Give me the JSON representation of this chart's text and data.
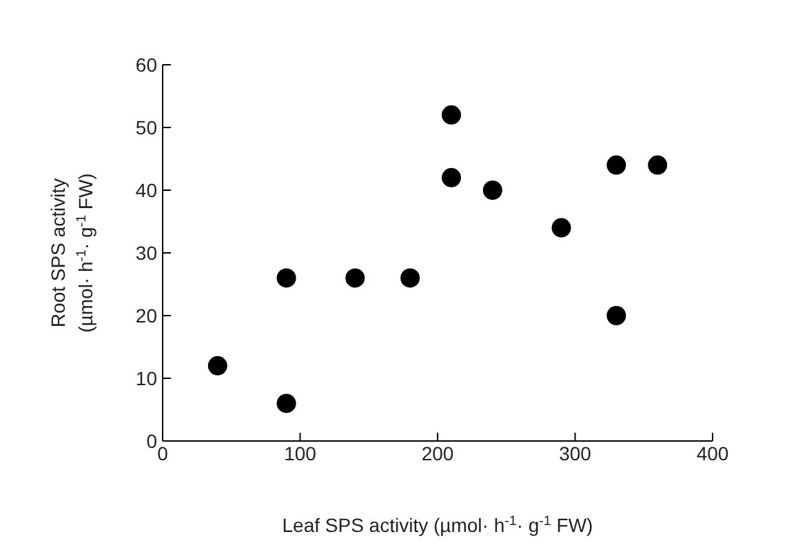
{
  "chart_data": {
    "type": "scatter",
    "xlabel": "Leaf SPS activity (µmol· h$^{-1}$· g$^{-1}$ FW)",
    "ylabel": "Root SPS activity\n(µmol· h$^{-1}$· g$^{-1}$ FW)",
    "x": [
      40,
      90,
      90,
      140,
      180,
      210,
      210,
      240,
      290,
      330,
      330,
      360
    ],
    "values": [
      12,
      6,
      26,
      26,
      26,
      52,
      42,
      40,
      34,
      44,
      20,
      44
    ],
    "color": "#000000",
    "marker": "circle",
    "xlim": [
      0,
      400
    ],
    "xticks": [
      0,
      100,
      200,
      300,
      400
    ],
    "ylim": [
      0,
      60
    ],
    "yticks": [
      0,
      10,
      20,
      30,
      40,
      50,
      60
    ],
    "grid": false,
    "legend": false
  }
}
